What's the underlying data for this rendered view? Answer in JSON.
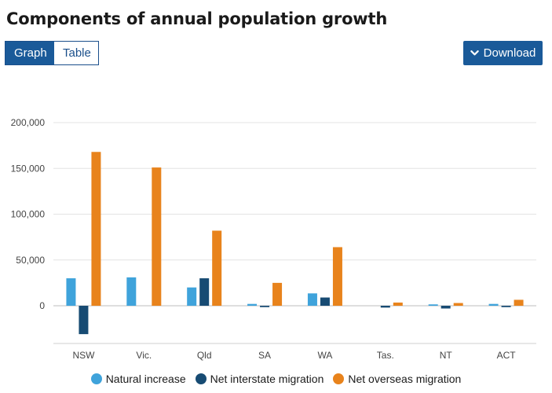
{
  "title": "Components of annual population growth",
  "toggle": {
    "graph_label": "Graph",
    "table_label": "Table"
  },
  "download_label": "Download",
  "colors": {
    "natural": "#3fa3db",
    "interstate": "#174b73",
    "overseas": "#e8831c",
    "button": "#1a5a99",
    "grid": "#e3e3e3"
  },
  "chart_data": {
    "type": "bar",
    "title": "Components of annual population growth",
    "xlabel": "",
    "ylabel": "",
    "categories": [
      "NSW",
      "Vic.",
      "Qld",
      "SA",
      "WA",
      "Tas.",
      "NT",
      "ACT"
    ],
    "yticks": [
      0,
      50000,
      100000,
      150000,
      200000
    ],
    "ytick_labels": [
      "0",
      "50,000",
      "100,000",
      "150,000",
      "200,000"
    ],
    "ylim": [
      -43000,
      200000
    ],
    "grid": true,
    "legend_position": "bottom",
    "series": [
      {
        "name": "Natural increase",
        "color_key": "natural",
        "values": [
          30000,
          31000,
          20000,
          2000,
          13500,
          0,
          1500,
          2000
        ]
      },
      {
        "name": "Net interstate migration",
        "color_key": "interstate",
        "values": [
          -31000,
          0,
          30000,
          -1500,
          9000,
          -2000,
          -3000,
          -1500
        ]
      },
      {
        "name": "Net overseas migration",
        "color_key": "overseas",
        "values": [
          168000,
          151000,
          82000,
          25000,
          64000,
          3500,
          3000,
          6500
        ]
      }
    ]
  }
}
